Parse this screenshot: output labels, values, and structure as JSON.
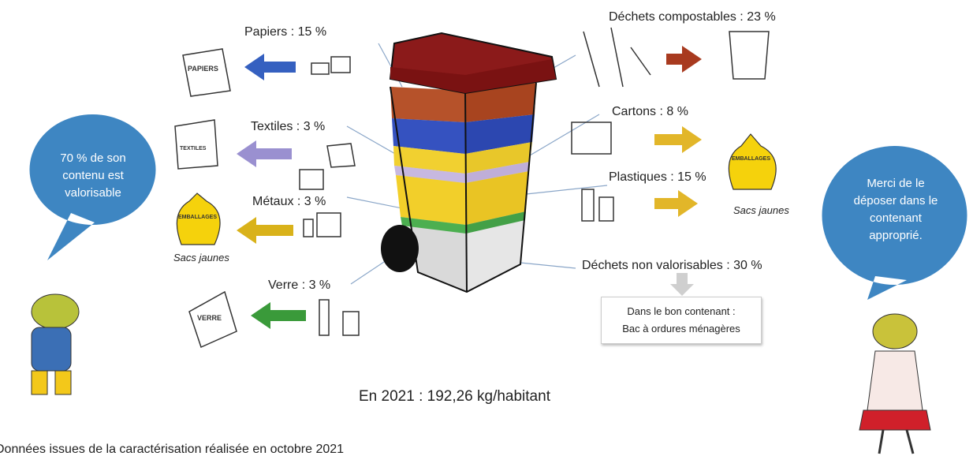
{
  "left_items": [
    {
      "label": "Papiers : 15 %",
      "bin_label": "PAPIERS"
    },
    {
      "label": "Textiles : 3 %",
      "bin_label": "TEXTILES"
    },
    {
      "label": "Métaux : 3 %",
      "bin_label": "EMBALLAGES",
      "caption": "Sacs jaunes"
    },
    {
      "label": "Verre : 3 %",
      "bin_label": "VERRE"
    }
  ],
  "right_items": [
    {
      "label": "Déchets compostables : 23 %"
    },
    {
      "label": "Cartons : 8 %",
      "bin_label": "EMBALLAGES",
      "caption": "Sacs jaunes"
    },
    {
      "label": "Plastiques : 15 %"
    },
    {
      "label": "Déchets non valorisables : 30 %"
    }
  ],
  "residual_box": {
    "line1": "Dans le bon contenant :",
    "line2": "Bac à ordures ménagères"
  },
  "left_bubble": "70 % de son contenu est valorisable",
  "right_bubble": "Merci de le déposer dans le contenant approprié.",
  "total": "En 2021 : 192,26 kg/habitant",
  "footer": "Données issues de la caractérisation réalisée en octobre 2021"
}
